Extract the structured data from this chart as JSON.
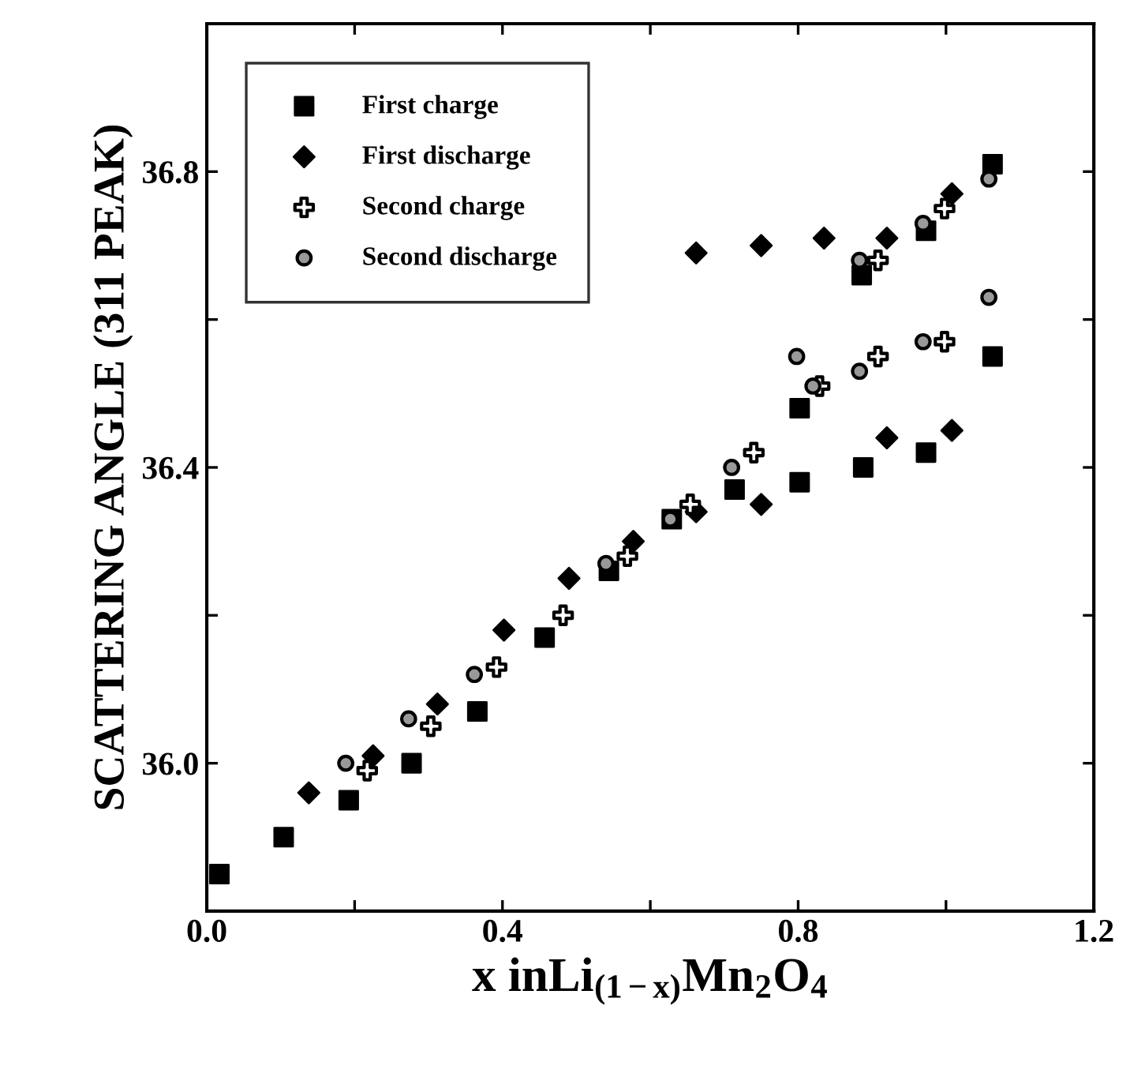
{
  "chart_data": {
    "type": "scatter",
    "xlabel": "x inLi$_{(1−x)}$Mn$_{2}$O$_{4}$",
    "ylabel": "SCATTERING ANGLE (311 PEAK)",
    "xlim": [
      0,
      1.2
    ],
    "xticks": [
      {
        "value": 0.0,
        "label": "0.0"
      },
      {
        "value": 0.2,
        "label": null
      },
      {
        "value": 0.4,
        "label": "0.4"
      },
      {
        "value": 0.6,
        "label": null
      },
      {
        "value": 0.8,
        "label": "0.8"
      },
      {
        "value": 1.0,
        "label": null
      },
      {
        "value": 1.2,
        "label": "1.2"
      }
    ],
    "ylim": [
      35.8,
      37.0
    ],
    "yticks": [
      {
        "value": 35.8,
        "label": null
      },
      {
        "value": 36.0,
        "label": "36.0"
      },
      {
        "value": 36.2,
        "label": null
      },
      {
        "value": 36.4,
        "label": "36.4"
      },
      {
        "value": 36.6,
        "label": null
      },
      {
        "value": 36.8,
        "label": "36.8"
      },
      {
        "value": 37.0,
        "label": null
      }
    ],
    "grid": false,
    "legend": "top left",
    "series": [
      {
        "name": "First charge",
        "color": "#000000",
        "marker": "square",
        "x": [
          0.017,
          0.104,
          0.192,
          0.277,
          0.366,
          0.457,
          0.544,
          0.629,
          0.714,
          0.802,
          0.888,
          0.973,
          1.063,
          0.802,
          0.886,
          0.973,
          1.063
        ],
        "values": [
          35.85,
          35.9,
          35.95,
          36.0,
          36.07,
          36.17,
          36.26,
          36.33,
          36.37,
          36.38,
          36.4,
          36.42,
          36.55,
          36.48,
          36.66,
          36.72,
          36.81
        ]
      },
      {
        "name": "First discharge",
        "color": "#000000",
        "marker": "diamond",
        "x": [
          0.138,
          0.225,
          0.312,
          0.402,
          0.49,
          0.577,
          0.662,
          0.75,
          0.92,
          1.008,
          0.662,
          0.75,
          0.835,
          0.92,
          1.008
        ],
        "values": [
          35.96,
          36.01,
          36.08,
          36.18,
          36.25,
          36.3,
          36.34,
          36.35,
          36.44,
          36.45,
          36.69,
          36.7,
          36.71,
          36.71,
          36.77
        ]
      },
      {
        "name": "Second charge",
        "color": "#000000",
        "marker": "cross",
        "x": [
          0.217,
          0.303,
          0.392,
          0.482,
          0.569,
          0.654,
          0.74,
          0.829,
          0.908,
          0.998,
          0.908,
          0.998
        ],
        "values": [
          35.99,
          36.05,
          36.13,
          36.2,
          36.28,
          36.35,
          36.42,
          36.51,
          36.55,
          36.57,
          36.68,
          36.75
        ]
      },
      {
        "name": "Second discharge",
        "color": "#000000",
        "marker": "circle",
        "x": [
          0.188,
          0.273,
          0.362,
          0.54,
          0.627,
          0.71,
          0.798,
          0.82,
          0.883,
          0.969,
          1.058,
          0.883,
          0.969,
          1.058
        ],
        "values": [
          36.0,
          36.06,
          36.12,
          36.27,
          36.33,
          36.4,
          36.55,
          36.51,
          36.53,
          36.57,
          36.63,
          36.68,
          36.73,
          36.79
        ]
      }
    ]
  }
}
